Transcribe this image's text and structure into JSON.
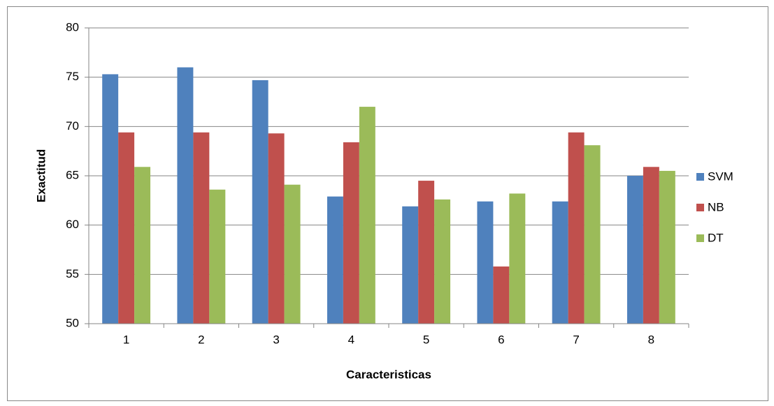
{
  "chart_data": {
    "type": "bar",
    "x_label": "Caracteristicas",
    "y_label": "Exactitud",
    "categories": [
      "1",
      "2",
      "3",
      "4",
      "5",
      "6",
      "7",
      "8"
    ],
    "series": [
      {
        "name": "SVM",
        "color": "#4f81bd",
        "values": [
          75.3,
          76.0,
          74.7,
          62.9,
          61.9,
          62.4,
          62.4,
          65.0
        ]
      },
      {
        "name": "NB",
        "color": "#c0504d",
        "values": [
          69.4,
          69.4,
          69.3,
          68.4,
          64.5,
          55.8,
          69.4,
          65.9
        ]
      },
      {
        "name": "DT",
        "color": "#9bbb59",
        "values": [
          65.9,
          63.6,
          64.1,
          72.0,
          62.6,
          63.2,
          68.1,
          65.5
        ]
      }
    ],
    "ylim": [
      50,
      80
    ],
    "yticks": [
      50,
      55,
      60,
      65,
      70,
      75,
      80
    ],
    "grid": true,
    "legend": "right"
  }
}
